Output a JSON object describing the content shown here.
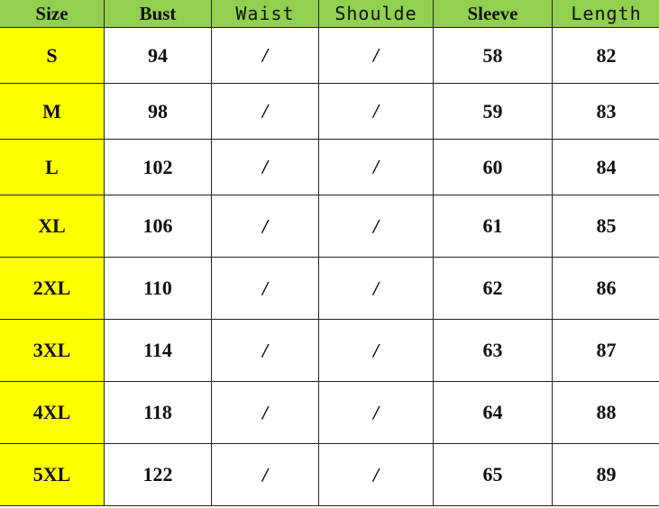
{
  "header_color": "#92d050",
  "size_column_color": "#ffff00",
  "headers": [
    "Size",
    "Bust",
    "Waist",
    "Shoulde",
    "Sleeve",
    "Length"
  ],
  "rows": [
    {
      "size": "S",
      "bust": "94",
      "waist": "/",
      "shoulder": "/",
      "sleeve": "58",
      "length": "82"
    },
    {
      "size": "M",
      "bust": "98",
      "waist": "/",
      "shoulder": "/",
      "sleeve": "59",
      "length": "83"
    },
    {
      "size": "L",
      "bust": "102",
      "waist": "/",
      "shoulder": "/",
      "sleeve": "60",
      "length": "84"
    },
    {
      "size": "XL",
      "bust": "106",
      "waist": "/",
      "shoulder": "/",
      "sleeve": "61",
      "length": "85"
    },
    {
      "size": "2XL",
      "bust": "110",
      "waist": "/",
      "shoulder": "/",
      "sleeve": "62",
      "length": "86"
    },
    {
      "size": "3XL",
      "bust": "114",
      "waist": "/",
      "shoulder": "/",
      "sleeve": "63",
      "length": "87"
    },
    {
      "size": "4XL",
      "bust": "118",
      "waist": "/",
      "shoulder": "/",
      "sleeve": "64",
      "length": "88"
    },
    {
      "size": "5XL",
      "bust": "122",
      "waist": "/",
      "shoulder": "/",
      "sleeve": "65",
      "length": "89"
    }
  ]
}
